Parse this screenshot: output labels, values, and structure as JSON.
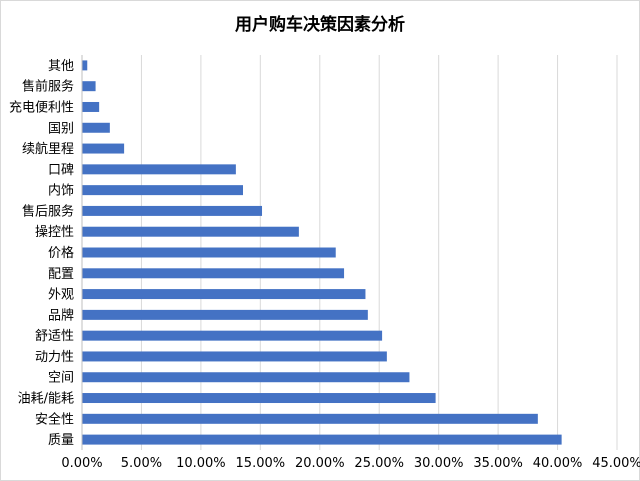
{
  "chart_data": {
    "type": "bar",
    "orientation": "horizontal",
    "title": "用户购车决策因素分析",
    "xlabel": "",
    "ylabel": "",
    "xlim": [
      0,
      45
    ],
    "x_ticks": [
      "0.00%",
      "5.00%",
      "10.00%",
      "15.00%",
      "20.00%",
      "25.00%",
      "30.00%",
      "35.00%",
      "40.00%",
      "45.00%"
    ],
    "grid": true,
    "legend": "none",
    "bar_color": "#4472C4",
    "categories": [
      "其他",
      "售前服务",
      "充电便利性",
      "国别",
      "续航里程",
      "口碑",
      "内饰",
      "售后服务",
      "操控性",
      "价格",
      "配置",
      "外观",
      "品牌",
      "舒适性",
      "动力性",
      "空间",
      "油耗/能耗",
      "安全性",
      "质量"
    ],
    "values": [
      0.4,
      1.1,
      1.4,
      2.3,
      3.5,
      12.9,
      13.5,
      15.1,
      18.2,
      21.3,
      22.0,
      23.8,
      24.0,
      25.2,
      25.6,
      27.5,
      29.7,
      38.3,
      40.3
    ]
  }
}
